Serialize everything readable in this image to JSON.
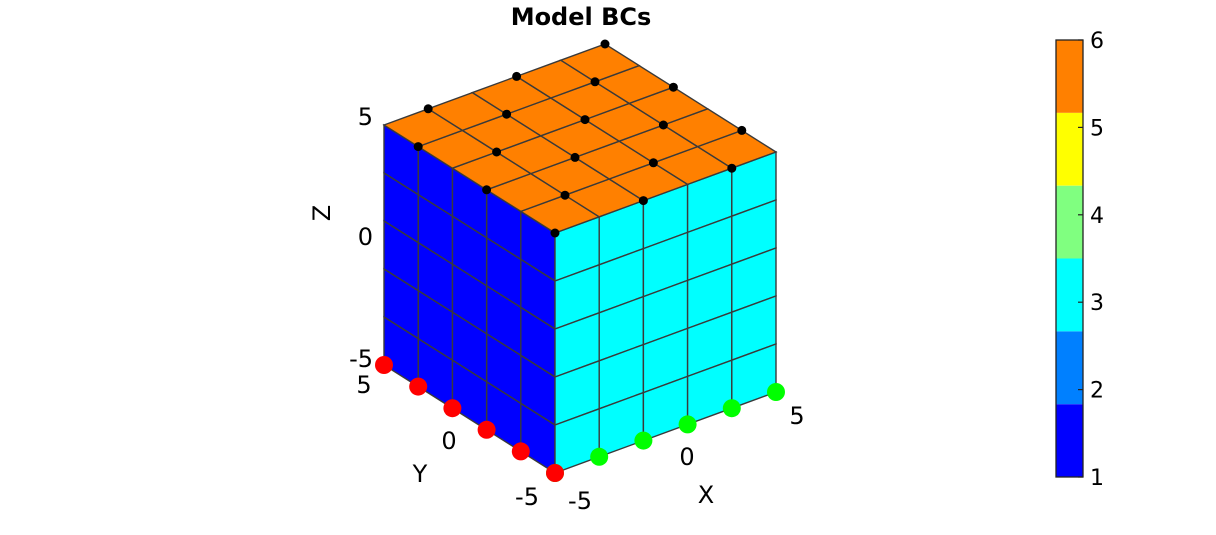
{
  "chart_data": {
    "type": "3d-mesh",
    "title": "Model BCs",
    "axes": {
      "x": {
        "label": "X",
        "ticks": [
          "-5",
          "0",
          "5"
        ],
        "range": [
          -5,
          5
        ]
      },
      "y": {
        "label": "Y",
        "ticks": [
          "-5",
          "0",
          "5"
        ],
        "range": [
          -5,
          5
        ]
      },
      "z": {
        "label": "Z",
        "ticks": [
          "-5",
          "0",
          "5"
        ],
        "range": [
          -5,
          5
        ]
      }
    },
    "mesh": {
      "elements_per_edge": 5
    },
    "faces": [
      {
        "face": "top",
        "value": 6
      },
      {
        "face": "x-max",
        "value": 3
      },
      {
        "face": "y-max",
        "value": 1
      }
    ],
    "colorbar": {
      "ticks": [
        "1",
        "2",
        "3",
        "4",
        "5",
        "6"
      ],
      "range": [
        1,
        6
      ],
      "levels": [
        "#0000ff",
        "#0080ff",
        "#00ffff",
        "#80ff80",
        "#ffff00",
        "#ff8000"
      ]
    },
    "node_markers": [
      {
        "color": "#ff0000",
        "edge": "bottom x-min edge"
      },
      {
        "color": "#00ff00",
        "edge": "bottom y-max edge"
      },
      {
        "color": "#000000",
        "edge": "top face nodes"
      }
    ]
  }
}
